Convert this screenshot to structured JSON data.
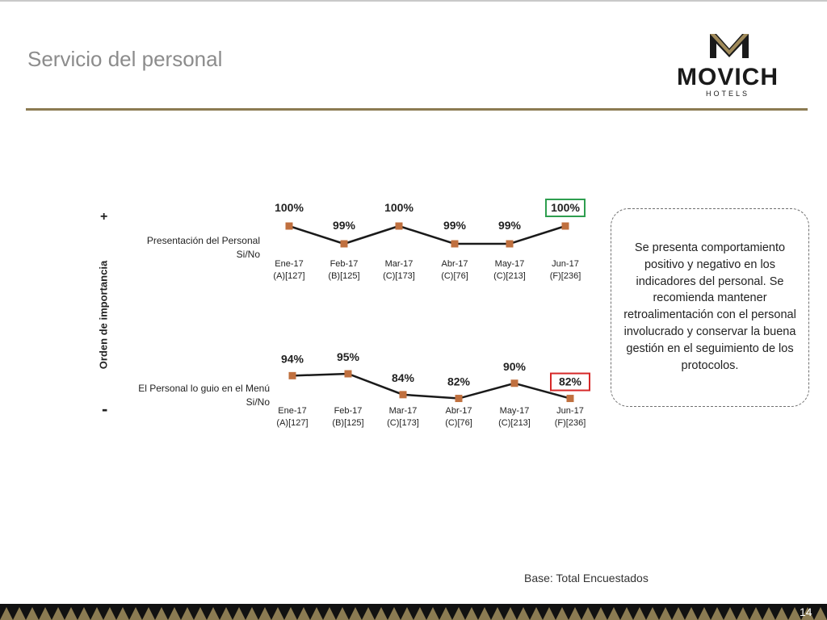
{
  "header": {
    "title": "Servicio del personal"
  },
  "logo": {
    "brand": "MOVICH",
    "sub": "HOTELS"
  },
  "axis": {
    "title": "Orden de importancia",
    "top_symbol": "+",
    "bottom_symbol": "-"
  },
  "chart_data": [
    {
      "type": "line",
      "title": "",
      "row_label_line1": "Presentación del Personal",
      "row_label_line2": "Si/No",
      "categories": [
        "Ene-17",
        "Feb-17",
        "Mar-17",
        "Abr-17",
        "May-17",
        "Jun-17"
      ],
      "bases": [
        "(A)[127]",
        "(B)[125]",
        "(C)[173]",
        "(C)[76]",
        "(C)[213]",
        "(F)[236]"
      ],
      "values": [
        100,
        99,
        100,
        99,
        99,
        100
      ],
      "labels": [
        "100%",
        "99%",
        "100%",
        "99%",
        "99%",
        "100%"
      ],
      "highlight_index": 5,
      "highlight_color": "#2e9e4f",
      "line_color": "#1a1a1a",
      "marker_color": "#c0703f"
    },
    {
      "type": "line",
      "title": "",
      "row_label_line1": "El Personal lo guio en el Menú",
      "row_label_line2": "Si/No",
      "categories": [
        "Ene-17",
        "Feb-17",
        "Mar-17",
        "Abr-17",
        "May-17",
        "Jun-17"
      ],
      "bases": [
        "(A)[127]",
        "(B)[125]",
        "(C)[173]",
        "(C)[76]",
        "(C)[213]",
        "(F)[236]"
      ],
      "values": [
        94,
        95,
        84,
        82,
        90,
        82
      ],
      "labels": [
        "94%",
        "95%",
        "84%",
        "82%",
        "90%",
        "82%"
      ],
      "highlight_index": 5,
      "highlight_color": "#d62828",
      "line_color": "#1a1a1a",
      "marker_color": "#c0703f"
    }
  ],
  "note": {
    "text": "Se presenta comportamiento positivo y negativo en los indicadores del personal. Se recomienda mantener retroalimentación con el personal involucrado y conservar la buena gestión en el seguimiento de los protocolos."
  },
  "footer": {
    "base": "Base: Total Encuestados",
    "page": "14",
    "pattern_color": "#8b7b52"
  }
}
